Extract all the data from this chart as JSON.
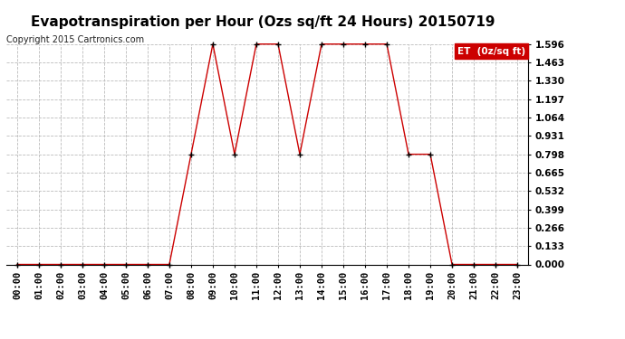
{
  "title": "Evapotranspiration per Hour (Ozs sq/ft 24 Hours) 20150719",
  "copyright": "Copyright 2015 Cartronics.com",
  "legend_label": "ET  (0z/sq ft)",
  "x_labels": [
    "00:00",
    "01:00",
    "02:00",
    "03:00",
    "04:00",
    "05:00",
    "06:00",
    "07:00",
    "08:00",
    "09:00",
    "10:00",
    "11:00",
    "12:00",
    "13:00",
    "14:00",
    "15:00",
    "16:00",
    "17:00",
    "18:00",
    "19:00",
    "20:00",
    "21:00",
    "22:00",
    "23:00"
  ],
  "y_values": [
    0.0,
    0.0,
    0.0,
    0.0,
    0.0,
    0.0,
    0.0,
    0.0,
    0.798,
    1.596,
    0.798,
    1.596,
    1.596,
    0.798,
    1.596,
    1.596,
    1.596,
    1.596,
    0.798,
    0.798,
    0.0,
    0.0,
    0.0,
    0.0
  ],
  "y_ticks": [
    0.0,
    0.133,
    0.266,
    0.399,
    0.532,
    0.665,
    0.798,
    0.931,
    1.064,
    1.197,
    1.33,
    1.463,
    1.596
  ],
  "ylim": [
    0.0,
    1.596
  ],
  "line_color": "#cc0000",
  "marker_color": "#000000",
  "background_color": "#ffffff",
  "grid_color": "#bbbbbb",
  "title_fontsize": 11,
  "copyright_fontsize": 7,
  "tick_fontsize": 7.5,
  "legend_bg": "#cc0000",
  "legend_text_color": "#ffffff",
  "legend_fontsize": 7.5
}
